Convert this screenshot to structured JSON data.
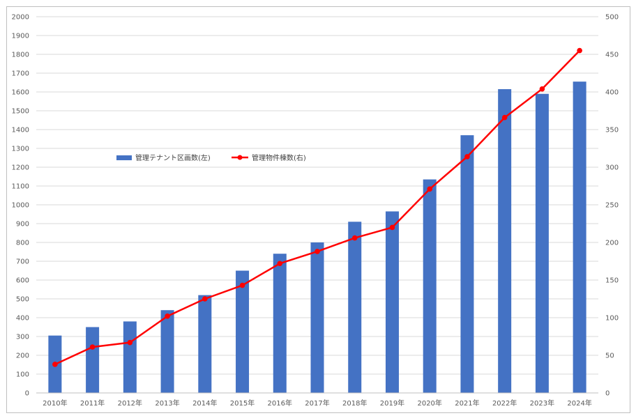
{
  "chart_data": {
    "type": "bar",
    "categories": [
      "2010年",
      "2011年",
      "2012年",
      "2013年",
      "2014年",
      "2015年",
      "2016年",
      "2017年",
      "2018年",
      "2019年",
      "2020年",
      "2021年",
      "2022年",
      "2023年",
      "2024年"
    ],
    "series": [
      {
        "name": "管理テナント区画数(左)",
        "type": "bar",
        "axis": "left",
        "color": "#4472c4",
        "values": [
          305,
          350,
          380,
          440,
          520,
          650,
          740,
          800,
          910,
          965,
          1135,
          1370,
          1615,
          1590,
          1655
        ]
      },
      {
        "name": "管理物件棟数(右)",
        "type": "line",
        "axis": "right",
        "color": "#ff0000",
        "values": [
          38,
          61,
          67,
          102,
          125,
          143,
          172,
          188,
          206,
          220,
          271,
          314,
          366,
          404,
          455
        ]
      }
    ],
    "y_left": {
      "min": 0,
      "max": 2000,
      "step": 100
    },
    "y_right": {
      "min": 0,
      "max": 500,
      "step": 50
    },
    "grid": true,
    "legend_position": "middle-left"
  }
}
